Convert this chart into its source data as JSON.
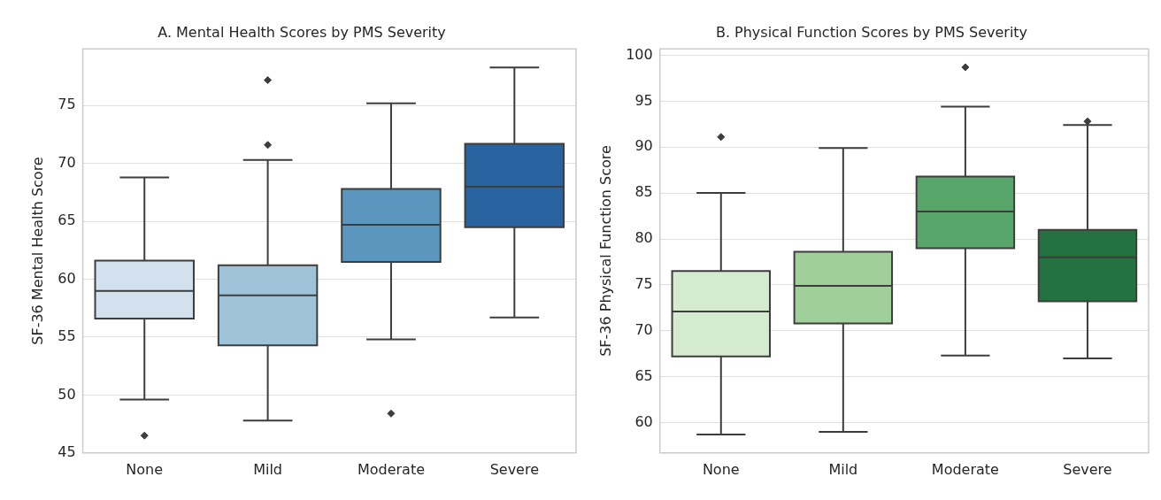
{
  "chart_data": [
    {
      "type": "box",
      "title": "A. Mental Health Scores by PMS Severity",
      "ylabel": "SF-36 Mental Health Score",
      "categories": [
        "None",
        "Mild",
        "Moderate",
        "Severe"
      ],
      "colors": [
        "#d3e1ef",
        "#9ec2d8",
        "#5b96be",
        "#2a64a0"
      ],
      "ylim": [
        45,
        79.9
      ],
      "yticks": [
        45,
        50,
        55,
        60,
        65,
        70,
        75
      ],
      "grid": "y",
      "boxes": [
        {
          "low": 49.6,
          "q1": 56.6,
          "median": 59.0,
          "q3": 61.6,
          "high": 68.8,
          "outliers": [
            46.5
          ]
        },
        {
          "low": 47.8,
          "q1": 54.3,
          "median": 58.6,
          "q3": 61.2,
          "high": 70.3,
          "outliers": [
            77.2,
            71.6
          ]
        },
        {
          "low": 54.8,
          "q1": 61.5,
          "median": 64.7,
          "q3": 67.8,
          "high": 75.2,
          "outliers": [
            48.4
          ]
        },
        {
          "low": 56.7,
          "q1": 64.5,
          "median": 68.0,
          "q3": 71.7,
          "high": 78.3
        }
      ]
    },
    {
      "type": "box",
      "title": "B. Physical Function Scores by PMS Severity",
      "ylabel": "SF-36 Physical Function Score",
      "categories": [
        "None",
        "Mild",
        "Moderate",
        "Severe"
      ],
      "colors": [
        "#d5ebd0",
        "#a0cf99",
        "#58a56a",
        "#237240"
      ],
      "ylim": [
        56.7,
        100.7
      ],
      "yticks": [
        60,
        65,
        70,
        75,
        80,
        85,
        90,
        95,
        100
      ],
      "grid": "y",
      "boxes": [
        {
          "low": 58.7,
          "q1": 67.2,
          "median": 72.1,
          "q3": 76.5,
          "high": 85.0,
          "outliers": [
            91.1
          ]
        },
        {
          "low": 59.0,
          "q1": 70.8,
          "median": 74.9,
          "q3": 78.6,
          "high": 89.9
        },
        {
          "low": 67.3,
          "q1": 79.0,
          "median": 83.0,
          "q3": 86.8,
          "high": 94.4,
          "outliers": [
            98.7
          ]
        },
        {
          "low": 67.0,
          "q1": 73.2,
          "median": 78.0,
          "q3": 81.0,
          "high": 92.4,
          "outliers": [
            92.8
          ]
        }
      ]
    }
  ]
}
